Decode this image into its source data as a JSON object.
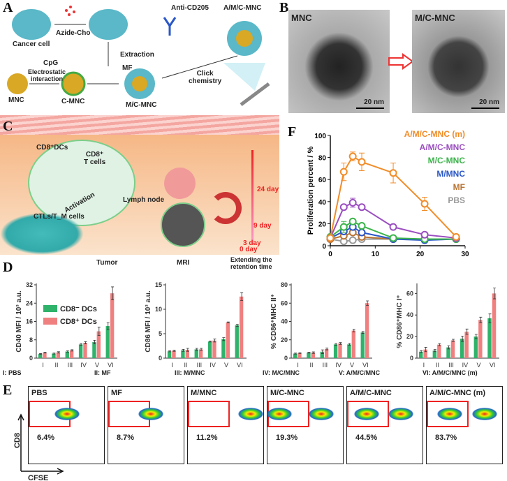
{
  "panels": {
    "a": "A",
    "b": "B",
    "c": "C",
    "d": "D",
    "e": "E",
    "f": "F"
  },
  "panel_a": {
    "cancer_cell": "Cancer cell",
    "azide_cho": "Azide-Cho",
    "anti_cd205": "Anti-CD205",
    "product": "A/M/C-MNC",
    "extraction": "Extraction",
    "mf": "MF",
    "click": "Click\nchemistry",
    "cpg": "CpG",
    "mnc": "MNC",
    "electrostatic": "Electrostatic\ninteraction",
    "c_mnc": "C-MNC",
    "m_c_mnc": "M/C-MNC"
  },
  "panel_b": {
    "left_label": "MNC",
    "right_label": "M/C-MNC",
    "scale_left": "20 nm",
    "scale_right": "20 nm"
  },
  "panel_c": {
    "cd8_dcs": "CD8⁺DCs",
    "cd8_t": "CD8⁺\nT cells",
    "activation": "Activation",
    "ctls": "CTLs/T_M cells",
    "lymph_node": "Lymph node",
    "tumor": "Tumor",
    "mri": "MRI",
    "extending": "Extending the\nretention time",
    "days": [
      "24 day",
      "9 day",
      "3 day",
      "0 day"
    ]
  },
  "colors": {
    "green": "#2fb36b",
    "red": "#f08080",
    "orange": "#f28c28",
    "purple": "#9b4fc0",
    "mgreen": "#3cb44b",
    "blue": "#2a57c8",
    "brown": "#b87333",
    "gray": "#999999"
  },
  "chart_data": [
    {
      "type": "line",
      "panel": "F",
      "xlabel": "Time  / day",
      "ylabel": "Proliferation percent  / %",
      "xlim": [
        0,
        30
      ],
      "ylim": [
        0,
        100
      ],
      "xticks": [
        0,
        10,
        20,
        30
      ],
      "yticks": [
        0,
        20,
        40,
        60,
        80,
        100
      ],
      "x": [
        0,
        3,
        5,
        7,
        14,
        21,
        28
      ],
      "series": [
        {
          "name": "A/M/C-MNC (m)",
          "color": "#f28c28",
          "values": [
            7,
            67,
            81,
            76,
            66,
            38,
            8
          ],
          "err": [
            0,
            8,
            4,
            8,
            9,
            6,
            0
          ]
        },
        {
          "name": "A/M/C-MNC",
          "color": "#9b4fc0",
          "values": [
            7,
            35,
            39,
            35,
            17,
            10,
            7
          ],
          "err": [
            0,
            0,
            4,
            0,
            0,
            0,
            0
          ]
        },
        {
          "name": "M/C-MNC",
          "color": "#3cb44b",
          "values": [
            8,
            17,
            22,
            18,
            7,
            6,
            6
          ],
          "err": [
            0,
            5,
            0,
            0,
            0,
            0,
            0
          ]
        },
        {
          "name": "M/MNC",
          "color": "#2a57c8",
          "values": [
            7,
            13,
            17,
            12,
            6,
            5,
            6
          ],
          "err": [
            0,
            0,
            0,
            0,
            0,
            0,
            0
          ]
        },
        {
          "name": "MF",
          "color": "#b87333",
          "values": [
            6,
            9,
            12,
            8,
            6,
            6,
            6
          ],
          "err": [
            0,
            0,
            0,
            0,
            0,
            0,
            0
          ]
        },
        {
          "name": "PBS",
          "color": "#999999",
          "values": [
            6,
            4,
            5,
            6,
            6,
            6,
            6
          ],
          "err": [
            0,
            0,
            0,
            0,
            0,
            0,
            0
          ]
        }
      ],
      "legend": "top-right"
    },
    {
      "type": "bar",
      "panel": "D",
      "ylabel": "CD40 MFI  / 10³ a.u.",
      "ylim": [
        0,
        32
      ],
      "yticks": [
        0,
        8,
        16,
        24,
        32
      ],
      "categories": [
        "I",
        "II",
        "III",
        "IV",
        "V",
        "VI"
      ],
      "series": [
        {
          "name": "CD8⁻ DCs",
          "color": "#2fb36b",
          "values": [
            1.8,
            2.0,
            2.9,
            6.0,
            7.0,
            14.0
          ],
          "err": [
            0.2,
            0.2,
            0.3,
            0.4,
            0.8,
            1.5
          ]
        },
        {
          "name": "CD8⁺ DCs",
          "color": "#f08080",
          "values": [
            2.4,
            2.5,
            3.4,
            6.7,
            11.7,
            28.3
          ],
          "err": [
            0.2,
            0.3,
            0.3,
            0.5,
            1.8,
            2.8
          ]
        }
      ],
      "legend": "top-left"
    },
    {
      "type": "bar",
      "panel": "D",
      "ylabel": "CD86 MFI  / 10³ a.u.",
      "ylim": [
        0,
        15
      ],
      "yticks": [
        0,
        5,
        10,
        15
      ],
      "categories": [
        "I",
        "II",
        "III",
        "IV",
        "V",
        "VI"
      ],
      "series": [
        {
          "values": [
            1.4,
            1.6,
            1.8,
            3.4,
            3.9,
            6.7
          ],
          "err": [
            0.1,
            0.2,
            0.2,
            0.1,
            0.3,
            0.2
          ]
        },
        {
          "values": [
            1.5,
            1.7,
            1.8,
            3.6,
            7.3,
            12.6
          ],
          "err": [
            0.1,
            0.3,
            0.2,
            0.3,
            0.1,
            0.8
          ]
        }
      ]
    },
    {
      "type": "bar",
      "panel": "D",
      "ylabel": "% CD86⁺MHC II⁺",
      "ylim": [
        0,
        80
      ],
      "yticks": [
        0,
        20,
        40,
        60,
        80
      ],
      "categories": [
        "I",
        "II",
        "III",
        "IV",
        "V",
        "VI"
      ],
      "series": [
        {
          "values": [
            5,
            6,
            7,
            15,
            15,
            28
          ],
          "err": [
            0.5,
            0.5,
            2,
            1,
            1,
            1
          ]
        },
        {
          "values": [
            5.5,
            6,
            10,
            16,
            30,
            60
          ],
          "err": [
            0.3,
            0.8,
            1,
            1,
            1.5,
            2.5
          ]
        }
      ]
    },
    {
      "type": "bar",
      "panel": "D",
      "ylabel": "% CD86⁺MHC I⁺",
      "ylim": [
        0,
        68
      ],
      "yticks": [
        0,
        20,
        40,
        60
      ],
      "categories": [
        "I",
        "II",
        "III",
        "IV",
        "V",
        "VI"
      ],
      "series": [
        {
          "values": [
            6,
            7,
            10,
            18,
            20,
            37
          ],
          "err": [
            1,
            1,
            1.5,
            2.5,
            2,
            4
          ]
        },
        {
          "values": [
            8,
            12.5,
            16.5,
            24.5,
            35.5,
            60
          ],
          "err": [
            2,
            1,
            1,
            2.5,
            2.5,
            5
          ]
        }
      ]
    }
  ],
  "group_key": [
    "I: PBS",
    "II: MF",
    "III: M/MNC",
    "IV: M/C/MNC",
    "V: A/M/C/MNC",
    "VI: A/M/C/MNC (m)"
  ],
  "panel_e": {
    "y_axis": "CD8",
    "x_axis": "CFSE",
    "plots": [
      {
        "label": "PBS",
        "percent": "6.4%"
      },
      {
        "label": "MF",
        "percent": "8.7%"
      },
      {
        "label": "M/MNC",
        "percent": "11.2%"
      },
      {
        "label": "M/C-MNC",
        "percent": "19.3%"
      },
      {
        "label": "A/M/C-MNC",
        "percent": "44.5%"
      },
      {
        "label": "A/M/C-MNC (m)",
        "percent": "83.7%"
      }
    ]
  }
}
